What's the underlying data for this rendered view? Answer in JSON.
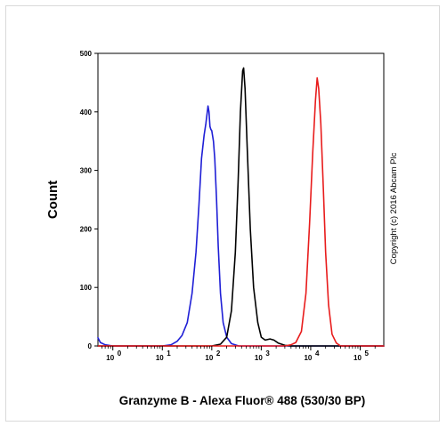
{
  "chart_data": {
    "type": "line",
    "title": "",
    "xlabel": "Granzyme B - Alexa Fluor® 488 (530/30 BP)",
    "ylabel": "Count",
    "xscale": "log",
    "xlim": [
      0.5,
      300000
    ],
    "ylim": [
      0,
      500
    ],
    "y_ticks": [
      "0",
      "100",
      "200",
      "300",
      "400",
      "500"
    ],
    "x_ticks": [
      {
        "base": "10",
        "exp": "0"
      },
      {
        "base": "10",
        "exp": "1"
      },
      {
        "base": "10",
        "exp": "2"
      },
      {
        "base": "10",
        "exp": "3"
      },
      {
        "base": "10",
        "exp": "4"
      },
      {
        "base": "10",
        "exp": "5"
      }
    ],
    "grid": false,
    "annotation": "Copyright (c) 2016 Abcam Plc",
    "series": [
      {
        "color": "#1f1fd6",
        "points": [
          [
            0.5,
            14
          ],
          [
            0.56,
            6
          ],
          [
            0.7,
            2
          ],
          [
            1,
            0
          ],
          [
            10,
            0
          ],
          [
            15,
            2
          ],
          [
            20,
            8
          ],
          [
            25,
            18
          ],
          [
            32,
            40
          ],
          [
            40,
            90
          ],
          [
            48,
            160
          ],
          [
            55,
            240
          ],
          [
            62,
            320
          ],
          [
            70,
            360
          ],
          [
            76,
            380
          ],
          [
            80,
            395
          ],
          [
            84,
            410
          ],
          [
            88,
            400
          ],
          [
            92,
            375
          ],
          [
            96,
            370
          ],
          [
            100,
            368
          ],
          [
            108,
            350
          ],
          [
            115,
            320
          ],
          [
            125,
            250
          ],
          [
            135,
            170
          ],
          [
            150,
            90
          ],
          [
            170,
            40
          ],
          [
            200,
            15
          ],
          [
            250,
            4
          ],
          [
            350,
            0
          ],
          [
            300000,
            0
          ]
        ]
      },
      {
        "color": "#000000",
        "points": [
          [
            0.5,
            0
          ],
          [
            100,
            0
          ],
          [
            150,
            3
          ],
          [
            200,
            15
          ],
          [
            250,
            60
          ],
          [
            300,
            160
          ],
          [
            340,
            280
          ],
          [
            380,
            400
          ],
          [
            420,
            470
          ],
          [
            440,
            475
          ],
          [
            470,
            440
          ],
          [
            520,
            340
          ],
          [
            600,
            200
          ],
          [
            700,
            100
          ],
          [
            850,
            40
          ],
          [
            1000,
            15
          ],
          [
            1200,
            10
          ],
          [
            1500,
            12
          ],
          [
            1800,
            10
          ],
          [
            2200,
            5
          ],
          [
            3000,
            1
          ],
          [
            4000,
            0
          ],
          [
            300000,
            0
          ]
        ]
      },
      {
        "color": "#e81c1c",
        "points": [
          [
            0.5,
            0
          ],
          [
            3000,
            0
          ],
          [
            4000,
            2
          ],
          [
            5000,
            6
          ],
          [
            6500,
            25
          ],
          [
            8000,
            90
          ],
          [
            9500,
            210
          ],
          [
            11000,
            330
          ],
          [
            12500,
            420
          ],
          [
            13500,
            458
          ],
          [
            14500,
            440
          ],
          [
            16000,
            380
          ],
          [
            18000,
            270
          ],
          [
            20000,
            160
          ],
          [
            23000,
            70
          ],
          [
            27000,
            20
          ],
          [
            33000,
            5
          ],
          [
            40000,
            0
          ],
          [
            300000,
            0
          ]
        ]
      }
    ]
  }
}
